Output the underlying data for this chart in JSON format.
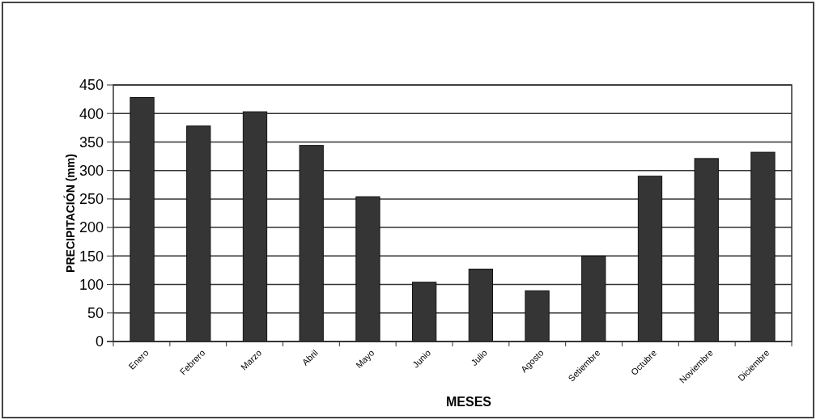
{
  "chart_data": {
    "type": "bar",
    "categories": [
      "Enero",
      "Febrero",
      "Marzo",
      "Abril",
      "Mayo",
      "Junio",
      "Julio",
      "Agosto",
      "Setiembre",
      "Octubre",
      "Noviembre",
      "Diciembre"
    ],
    "values": [
      428,
      378,
      403,
      344,
      254,
      104,
      127,
      89,
      150,
      290,
      321,
      332
    ],
    "color": "#353535",
    "xlabel": "MESES",
    "ylabel": "PRECIPITACIÓN (mm)",
    "ylim": [
      0,
      450
    ],
    "yticks": [
      0,
      50,
      100,
      150,
      200,
      250,
      300,
      350,
      400,
      450
    ],
    "grid": "y"
  }
}
